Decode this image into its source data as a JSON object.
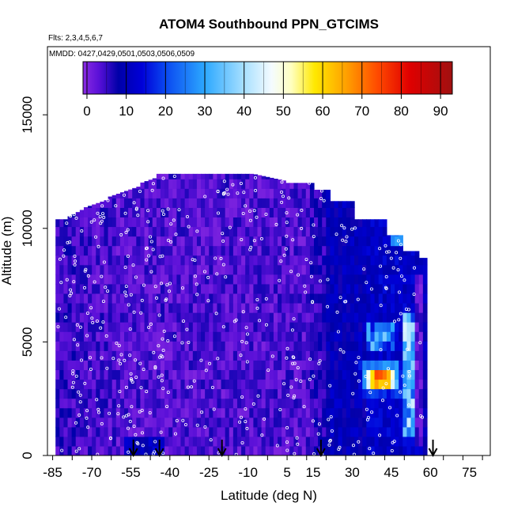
{
  "chart_data": {
    "type": "heatmap",
    "title": "ATOM4 Southbound PPN_GTCIMS",
    "subtitle": "Flts: 2,3,4,5,6,7",
    "annotation": "MMDD: 0427,0429,0501,0503,0506,0509",
    "xlabel": "Latitude (deg N)",
    "ylabel": "Altitude (m)",
    "xlim": [
      -87,
      83
    ],
    "ylim": [
      0,
      18000
    ],
    "x_tick_labels": [
      "-85",
      "-70",
      "-55",
      "-40",
      "-25",
      "-10",
      "5",
      "15",
      "30",
      "45",
      "60",
      "75"
    ],
    "x_tick_values": [
      -85,
      -70,
      -55,
      -40,
      -25,
      -10,
      5,
      15,
      30,
      45,
      60,
      75
    ],
    "y_tick_labels": [
      "0",
      "5000",
      "10000",
      "15000"
    ],
    "y_tick_values": [
      0,
      5000,
      10000,
      15000
    ],
    "colorbar": {
      "min": -1,
      "max": 93,
      "tick_labels": [
        "0",
        "10",
        "20",
        "30",
        "40",
        "50",
        "60",
        "70",
        "80",
        "90"
      ],
      "tick_values": [
        0,
        10,
        20,
        30,
        40,
        50,
        60,
        70,
        80,
        90
      ],
      "stops": [
        {
          "v": -1,
          "c": "#8a2be2"
        },
        {
          "v": 3,
          "c": "#5a10d8"
        },
        {
          "v": 8,
          "c": "#0000a8"
        },
        {
          "v": 14,
          "c": "#0000d8"
        },
        {
          "v": 20,
          "c": "#0a48f0"
        },
        {
          "v": 30,
          "c": "#2ca8ff"
        },
        {
          "v": 40,
          "c": "#a8e0ff"
        },
        {
          "v": 47,
          "c": "#f4fbff"
        },
        {
          "v": 52,
          "c": "#ffffc0"
        },
        {
          "v": 58,
          "c": "#ffe800"
        },
        {
          "v": 66,
          "c": "#ffa000"
        },
        {
          "v": 74,
          "c": "#ff4a00"
        },
        {
          "v": 82,
          "c": "#e00000"
        },
        {
          "v": 93,
          "c": "#a01010"
        }
      ]
    },
    "flight_marker_latitudes": [
      -54,
      -44,
      -20,
      18,
      61
    ],
    "grid": false,
    "legend": "colorbar top"
  }
}
